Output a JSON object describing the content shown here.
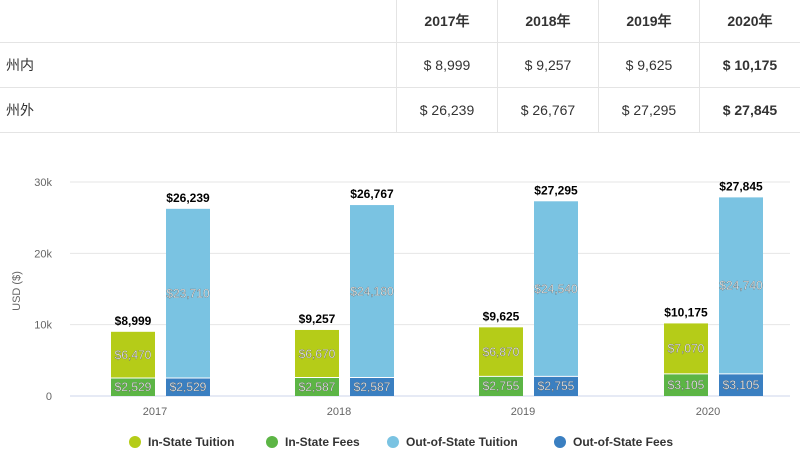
{
  "table": {
    "years": [
      "2017年",
      "2018年",
      "2019年",
      "2020年"
    ],
    "rows": [
      {
        "label": "州内",
        "values": [
          "$ 8,999",
          "$ 9,257",
          "$ 9,625",
          "$ 10,175"
        ]
      },
      {
        "label": "州外",
        "values": [
          "$ 26,239",
          "$ 26,767",
          "$ 27,295",
          "$ 27,845"
        ]
      }
    ]
  },
  "chart_data": {
    "type": "bar",
    "stacked": true,
    "categories": [
      "2017",
      "2018",
      "2019",
      "2020"
    ],
    "ylabel": "USD ($)",
    "ylim": [
      0,
      30000
    ],
    "yticks": [
      0,
      10000,
      20000,
      30000
    ],
    "ytick_labels": [
      "0",
      "10k",
      "20k",
      "30k"
    ],
    "grid": true,
    "legend_position": "bottom",
    "series": [
      {
        "name": "In-State Tuition",
        "stack": "in",
        "color": "#b5cc18",
        "values": [
          6470,
          6670,
          6870,
          7070
        ],
        "labels": [
          "$6,470",
          "$6,670",
          "$6,870",
          "$7,070"
        ]
      },
      {
        "name": "In-State Fees",
        "stack": "in",
        "color": "#5cb545",
        "values": [
          2529,
          2587,
          2755,
          3105
        ],
        "labels": [
          "$2,529",
          "$2,587",
          "$2,755",
          "$3,105"
        ]
      },
      {
        "name": "Out-of-State Tuition",
        "stack": "out",
        "color": "#7ac3e2",
        "values": [
          23710,
          24180,
          24540,
          24740
        ],
        "labels": [
          "$23,710",
          "$24,180",
          "$24,540",
          "$24,740"
        ]
      },
      {
        "name": "Out-of-State Fees",
        "stack": "out",
        "color": "#3a7fc1",
        "values": [
          2529,
          2587,
          2755,
          3105
        ],
        "labels": [
          "$2,529",
          "$2,587",
          "$2,755",
          "$3,105"
        ]
      }
    ],
    "totals": {
      "in": [
        "$8,999",
        "$9,257",
        "$9,625",
        "$10,175"
      ],
      "out": [
        "$26,239",
        "$26,767",
        "$27,295",
        "$27,845"
      ]
    }
  }
}
